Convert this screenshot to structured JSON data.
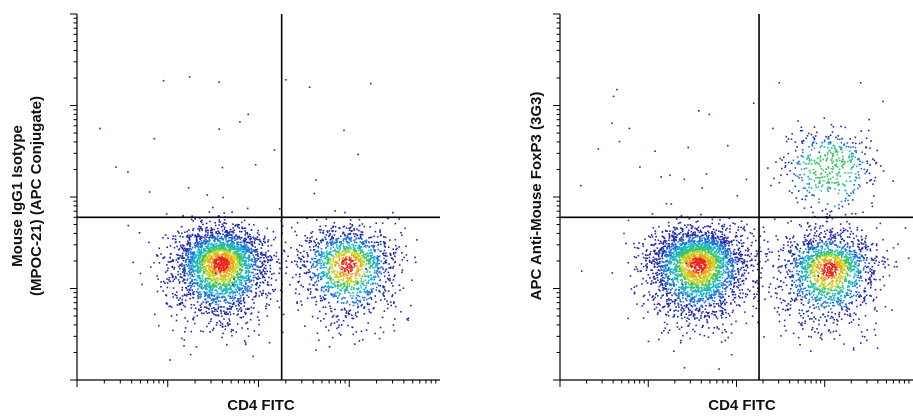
{
  "chart_data": [
    {
      "type": "scatter",
      "title": "",
      "xlabel": "CD4 FITC",
      "ylabel_lines": [
        "Mouse IgG1 Isotype",
        "(MPOC-21) (APC Conjugate)"
      ],
      "x_scale": "log",
      "y_scale": "log",
      "xlim": [
        10,
        100000
      ],
      "ylim": [
        10,
        100000
      ],
      "grid": false,
      "legend": "none",
      "gate_lines": {
        "x": 1800,
        "y": 600
      },
      "colors": [
        "#1f2aa8",
        "#1e6fd6",
        "#19b5c9",
        "#3cc46a",
        "#c9d61e",
        "#f0a01a",
        "#e8261c"
      ],
      "populations": [
        {
          "name": "CD4-negative",
          "x": 380,
          "y": 195,
          "count": 2600
        },
        {
          "name": "CD4-positive",
          "x": 9500,
          "y": 190,
          "count": 1400
        }
      ]
    },
    {
      "type": "scatter",
      "title": "",
      "xlabel": "CD4 FITC",
      "ylabel_lines": [
        "APC Anti-Mouse FoxP3 (3G3)"
      ],
      "x_scale": "log",
      "y_scale": "log",
      "xlim": [
        10,
        100000
      ],
      "ylim": [
        10,
        100000
      ],
      "grid": false,
      "legend": "none",
      "gate_lines": {
        "x": 1800,
        "y": 600
      },
      "colors": [
        "#1f2aa8",
        "#1e6fd6",
        "#19b5c9",
        "#3cc46a",
        "#c9d61e",
        "#f0a01a",
        "#e8261c"
      ],
      "populations": [
        {
          "name": "CD4-negative",
          "x": 360,
          "y": 190,
          "count": 2800
        },
        {
          "name": "CD4-positive FoxP3-negative",
          "x": 11000,
          "y": 170,
          "count": 1600
        },
        {
          "name": "CD4-positive FoxP3-positive",
          "x": 11000,
          "y": 2300,
          "count": 450
        }
      ]
    }
  ]
}
